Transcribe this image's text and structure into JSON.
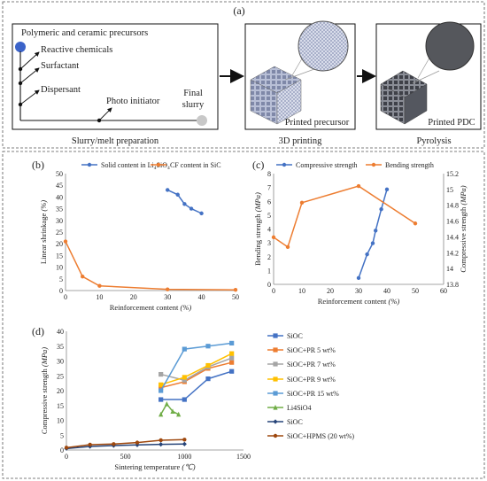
{
  "panel_a": {
    "label": "(a)",
    "box_title": "Polymeric and ceramic precursors",
    "steps": [
      "Reactive chemicals",
      "Surfactant",
      "Dispersant",
      "Photo initiator"
    ],
    "final_label_1": "Final",
    "final_label_2": "slurry",
    "caption_prep": "Slurry/melt preparation",
    "caption_print": "3D printing",
    "caption_pyro": "Pyrolysis",
    "printed_precursor": "Printed precursor",
    "printed_pdc": "Printed PDC"
  },
  "chart_data": [
    {
      "panel": "(b)",
      "type": "line",
      "xlabel": "Reinforcement content (%)",
      "ylabel": "Linear shrinkage (%)",
      "xlim": [
        0,
        50
      ],
      "ylim": [
        0,
        50
      ],
      "xticks": [
        "0",
        "10",
        "20",
        "30",
        "40",
        "50"
      ],
      "yticks": [
        "0",
        "5",
        "10",
        "15",
        "20",
        "25",
        "30",
        "35",
        "40",
        "45",
        "50"
      ],
      "legend": "top",
      "series": [
        {
          "name": "Solid content in Li4SiO4",
          "name_main": "Solid content in Li",
          "name_sub": "4",
          "name_mid": "SiO",
          "name_sub2": "4",
          "color": "#4472c4",
          "x": [
            30,
            33,
            35,
            37,
            40
          ],
          "y": [
            43,
            41,
            37,
            35,
            33
          ]
        },
        {
          "name": "CF content in SiC",
          "color": "#ed7d31",
          "x": [
            0,
            5,
            10,
            30,
            50
          ],
          "y": [
            21,
            6,
            2,
            0.5,
            0.3
          ]
        }
      ]
    },
    {
      "panel": "(c)",
      "type": "line",
      "xlabel": "Reinforcement content (%)",
      "ylabel": "Bending strength (MPa)",
      "y2label": "Compressive strength (MPa)",
      "xlim": [
        0,
        60
      ],
      "ylim": [
        0,
        8
      ],
      "y2lim": [
        13.8,
        15.2
      ],
      "xticks": [
        "0",
        "10",
        "20",
        "30",
        "40",
        "50",
        "60"
      ],
      "yticks": [
        "0",
        "1",
        "2",
        "3",
        "4",
        "5",
        "6",
        "7",
        "8"
      ],
      "y2ticks": [
        "13.8",
        "14",
        "14.2",
        "14.4",
        "14.6",
        "14.8",
        "15",
        "15.2"
      ],
      "legend": "top",
      "series": [
        {
          "name": "Compressive strength",
          "color": "#4472c4",
          "axis": "right",
          "x": [
            30,
            33,
            35,
            36,
            38,
            40
          ],
          "y": [
            13.88,
            14.18,
            14.32,
            14.48,
            14.75,
            15.0
          ]
        },
        {
          "name": "Bending strength",
          "color": "#ed7d31",
          "axis": "left",
          "x": [
            0,
            5,
            10,
            30,
            50
          ],
          "y": [
            3.4,
            2.7,
            5.9,
            7.1,
            4.4
          ]
        }
      ]
    },
    {
      "panel": "(d)",
      "type": "line",
      "xlabel": "Sintering temperature (℃)",
      "ylabel": "Compressive strength (MPa)",
      "xlim": [
        0,
        1500
      ],
      "ylim": [
        0,
        40
      ],
      "xticks": [
        "0",
        "500",
        "1000",
        "1500"
      ],
      "yticks": [
        "0",
        "5",
        "10",
        "15",
        "20",
        "25",
        "30",
        "35",
        "40"
      ],
      "legend": "right",
      "series": [
        {
          "name": "SiOC",
          "color": "#4472c4",
          "marker": "square",
          "x": [
            800,
            1000,
            1200,
            1400
          ],
          "y": [
            17,
            17,
            24,
            26.5
          ]
        },
        {
          "name": "SiOC+PR 5 wt%",
          "color": "#ed7d31",
          "marker": "square",
          "x": [
            800,
            1000,
            1200,
            1400
          ],
          "y": [
            21,
            23,
            27.5,
            29.5
          ]
        },
        {
          "name": "SiOC+PR 7 wt%",
          "color": "#a5a5a5",
          "marker": "square",
          "x": [
            800,
            1000,
            1200,
            1400
          ],
          "y": [
            25.5,
            23.5,
            28,
            31
          ]
        },
        {
          "name": "SiOC+PR 9 wt%",
          "color": "#ffc000",
          "marker": "square",
          "x": [
            800,
            1000,
            1200,
            1400
          ],
          "y": [
            22,
            24.5,
            28.5,
            32.5
          ]
        },
        {
          "name": "SiOC+PR 15 wt%",
          "color": "#5b9bd5",
          "marker": "square",
          "x": [
            800,
            1000,
            1200,
            1400
          ],
          "y": [
            20,
            34,
            35,
            36
          ]
        },
        {
          "name": "Li4SiO4",
          "color": "#70ad47",
          "marker": "triangle",
          "x": [
            800,
            850,
            900,
            950
          ],
          "y": [
            12,
            15.5,
            13,
            12
          ]
        },
        {
          "name": "SiOC",
          "color": "#264478",
          "marker": "diamond",
          "x": [
            0,
            200,
            400,
            600,
            800,
            1000
          ],
          "y": [
            0.5,
            1.2,
            1.5,
            1.7,
            1.9,
            2.0
          ]
        },
        {
          "name": "SiOC+HPMS (20 wt%)",
          "color": "#9e480e",
          "marker": "circle",
          "x": [
            0,
            200,
            400,
            600,
            800,
            1000
          ],
          "y": [
            0.8,
            1.8,
            2.0,
            2.5,
            3.3,
            3.5
          ]
        }
      ]
    }
  ]
}
